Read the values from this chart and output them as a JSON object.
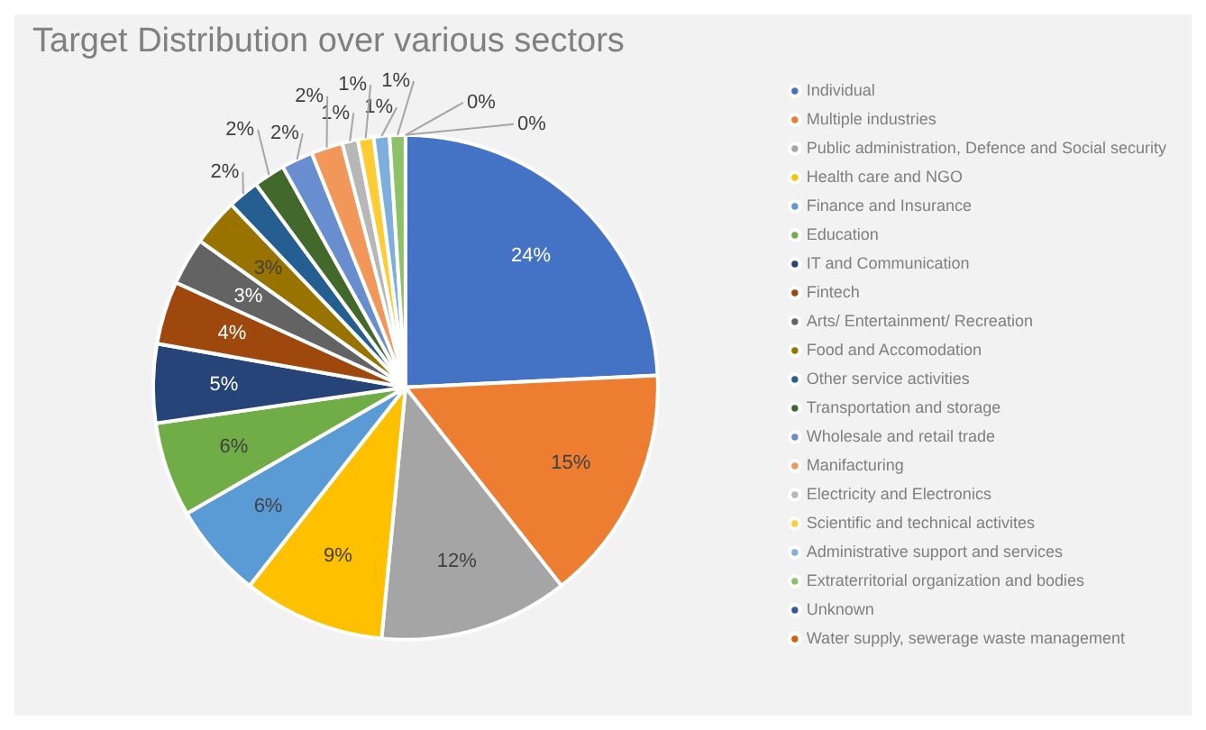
{
  "chart_data": {
    "type": "pie",
    "title": "Target Distribution over various sectors",
    "categories": [
      "Individual",
      "Multiple industries",
      "Public administration, Defence and Social security",
      "Health care and NGO",
      "Finance and Insurance",
      "Education",
      "IT and Communication",
      "Fintech",
      "Arts/ Entertainment/ Recreation",
      "Food and Accomodation",
      "Other service activities",
      "Transportation and storage",
      "Wholesale and retail trade",
      "Manifacturing",
      "Electricity and Electronics",
      "Scientific and technical activites",
      "Administrative support and services",
      "Extraterritorial organization and bodies",
      "Unknown",
      "Water supply, sewerage waste management"
    ],
    "values": [
      24,
      15,
      12,
      9,
      6,
      6,
      5,
      4,
      3,
      3,
      2,
      2,
      2,
      2,
      1,
      1,
      1,
      1,
      0,
      0
    ],
    "value_labels": [
      "24%",
      "15%",
      "12%",
      "9%",
      "6%",
      "6%",
      "5%",
      "4%",
      "3%",
      "3%",
      "2%",
      "2%",
      "2%",
      "2%",
      "1%",
      "1%",
      "1%",
      "1%",
      "0%",
      "0%"
    ],
    "colors": [
      "#4472c4",
      "#ed7d31",
      "#a5a5a5",
      "#ffc000",
      "#5b9bd5",
      "#70ad47",
      "#264478",
      "#9e480e",
      "#636363",
      "#997300",
      "#255e91",
      "#43682b",
      "#698ed0",
      "#f1975a",
      "#b7b7b7",
      "#ffcd33",
      "#7cafdd",
      "#8cc168",
      "#335aa1",
      "#d26012"
    ],
    "legend": "right"
  }
}
